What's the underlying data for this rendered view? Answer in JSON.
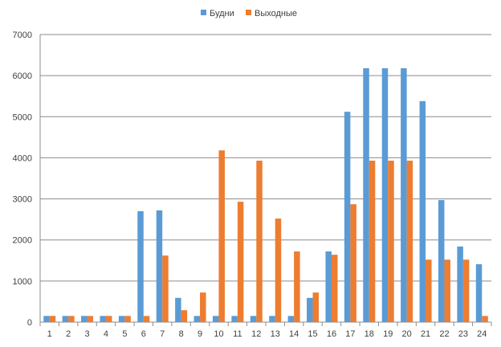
{
  "chart_data": {
    "type": "bar",
    "title": "",
    "xlabel": "",
    "ylabel": "",
    "ylim": [
      0,
      7000
    ],
    "yticks": [
      "0",
      "1000",
      "2000",
      "3000",
      "4000",
      "5000",
      "6000",
      "7000"
    ],
    "grid": true,
    "legend": "top",
    "categories": [
      "1",
      "2",
      "3",
      "4",
      "5",
      "6",
      "7",
      "8",
      "9",
      "10",
      "11",
      "12",
      "13",
      "14",
      "15",
      "16",
      "17",
      "18",
      "19",
      "20",
      "21",
      "22",
      "23",
      "24"
    ],
    "series": [
      {
        "name": "Будни",
        "color": "#5B9BD5",
        "values": [
          150,
          150,
          150,
          150,
          150,
          2700,
          2720,
          590,
          150,
          150,
          150,
          150,
          150,
          150,
          590,
          1720,
          5120,
          6180,
          6180,
          6180,
          5380,
          2970,
          1840,
          1410
        ]
      },
      {
        "name": "Выходные",
        "color": "#ED7D31",
        "values": [
          150,
          150,
          150,
          150,
          150,
          150,
          1620,
          290,
          720,
          4180,
          2930,
          3930,
          2520,
          1720,
          720,
          1640,
          2870,
          3930,
          3930,
          3930,
          1520,
          1520,
          1520,
          150
        ]
      }
    ]
  }
}
